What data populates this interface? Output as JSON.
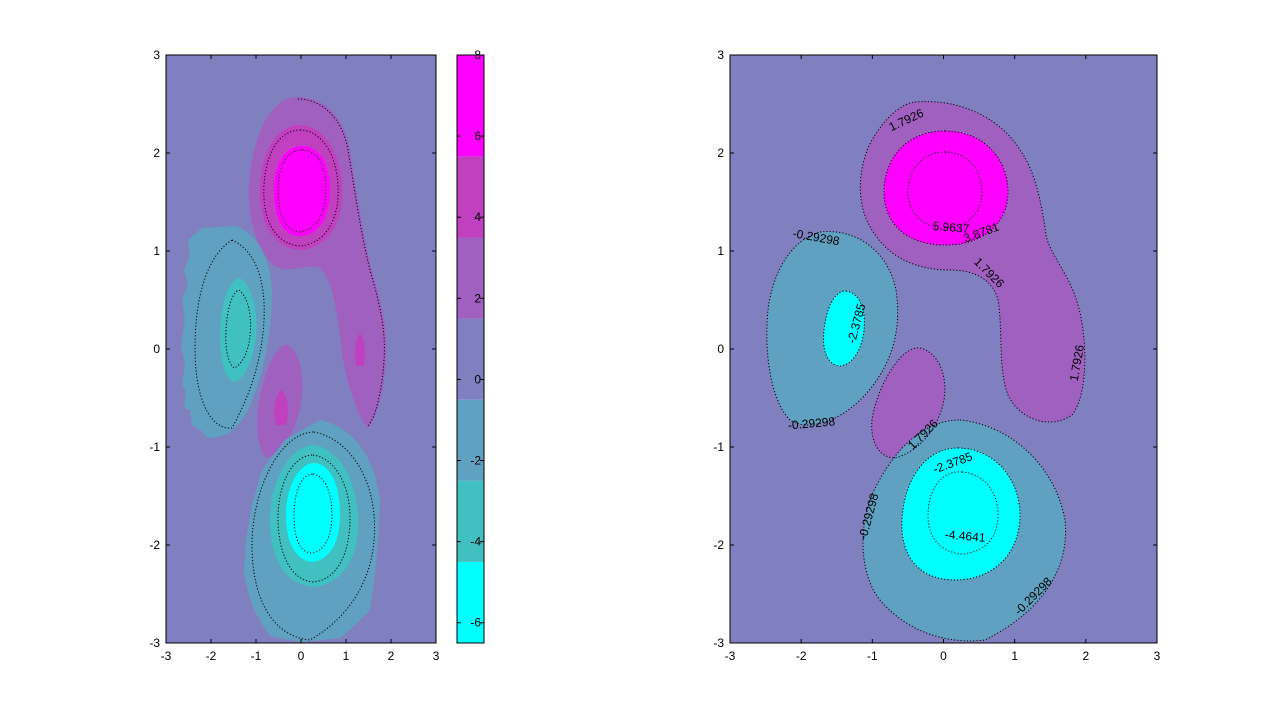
{
  "figure": {
    "background": "#ffffff",
    "panel_background": "#8080c0"
  },
  "chart_data": [
    {
      "type": "heatmap",
      "subtype": "filled-contour",
      "title": "",
      "xlabel": "",
      "ylabel": "",
      "xlim": [
        -3,
        3
      ],
      "ylim": [
        -3,
        3
      ],
      "xticks": [
        "-3",
        "-2",
        "-1",
        "0",
        "1",
        "2",
        "3"
      ],
      "yticks": [
        "-3",
        "-2",
        "-1",
        "0",
        "1",
        "2",
        "3"
      ],
      "grid": false,
      "colorbar": {
        "position": "right",
        "range": [
          -6.5,
          8
        ],
        "ticks": [
          "-6",
          "-4",
          "-2",
          "0",
          "2",
          "4",
          "6",
          "8"
        ],
        "bands": [
          {
            "from": -6.5,
            "to": -4.5,
            "color": "#00ffff"
          },
          {
            "from": -4.5,
            "to": -2.5,
            "color": "#40c0c0"
          },
          {
            "from": -2.5,
            "to": -0.5,
            "color": "#60a0c0"
          },
          {
            "from": -0.5,
            "to": 1.5,
            "color": "#8080c0"
          },
          {
            "from": 1.5,
            "to": 3.5,
            "color": "#a060c0"
          },
          {
            "from": 3.5,
            "to": 5.5,
            "color": "#c040c0"
          },
          {
            "from": 5.5,
            "to": 8,
            "color": "#ff00ff"
          }
        ]
      },
      "regions": [
        {
          "name": "positive-peak",
          "x": 0.0,
          "y": 1.6,
          "value": 8.0
        },
        {
          "name": "positive-tail",
          "x": 1.3,
          "y": 0.0,
          "value": 3.6
        },
        {
          "name": "positive-lobe",
          "x": -0.4,
          "y": -0.6,
          "value": 3.5
        },
        {
          "name": "negative-lobe",
          "x": -1.4,
          "y": 0.2,
          "value": -3.3
        },
        {
          "name": "negative-trough",
          "x": 0.2,
          "y": -1.6,
          "value": -6.5
        }
      ]
    },
    {
      "type": "heatmap",
      "subtype": "filled-contour-labeled",
      "title": "",
      "xlabel": "",
      "ylabel": "",
      "xlim": [
        -3,
        3
      ],
      "ylim": [
        -3,
        3
      ],
      "xticks": [
        "-3",
        "-2",
        "-1",
        "0",
        "1",
        "2",
        "3"
      ],
      "yticks": [
        "-3",
        "-2",
        "-1",
        "0",
        "1",
        "2",
        "3"
      ],
      "grid": false,
      "levels": [
        -4.4641,
        -2.3785,
        -0.29298,
        1.7926,
        3.8781,
        5.9637
      ],
      "contour_labels": [
        {
          "text": "1.7926",
          "x": -0.5,
          "y": 2.3
        },
        {
          "text": "5.9637",
          "x": 0.1,
          "y": 1.2
        },
        {
          "text": "3.8781",
          "x": 0.55,
          "y": 1.15
        },
        {
          "text": "-0.29298",
          "x": -1.8,
          "y": 1.1
        },
        {
          "text": "1.7926",
          "x": 0.6,
          "y": 0.75
        },
        {
          "text": "-2.3785",
          "x": -1.17,
          "y": 0.25
        },
        {
          "text": "1.7926",
          "x": 1.93,
          "y": -0.15
        },
        {
          "text": "-0.29298",
          "x": -1.85,
          "y": -0.8
        },
        {
          "text": "1.7926",
          "x": -0.25,
          "y": -0.9
        },
        {
          "text": "-2.3785",
          "x": 0.15,
          "y": -1.2
        },
        {
          "text": "-0.29298",
          "x": -1.0,
          "y": -1.72
        },
        {
          "text": "-4.4641",
          "x": 0.3,
          "y": -1.95
        },
        {
          "text": "-0.29298",
          "x": 1.3,
          "y": -2.55
        }
      ]
    }
  ]
}
